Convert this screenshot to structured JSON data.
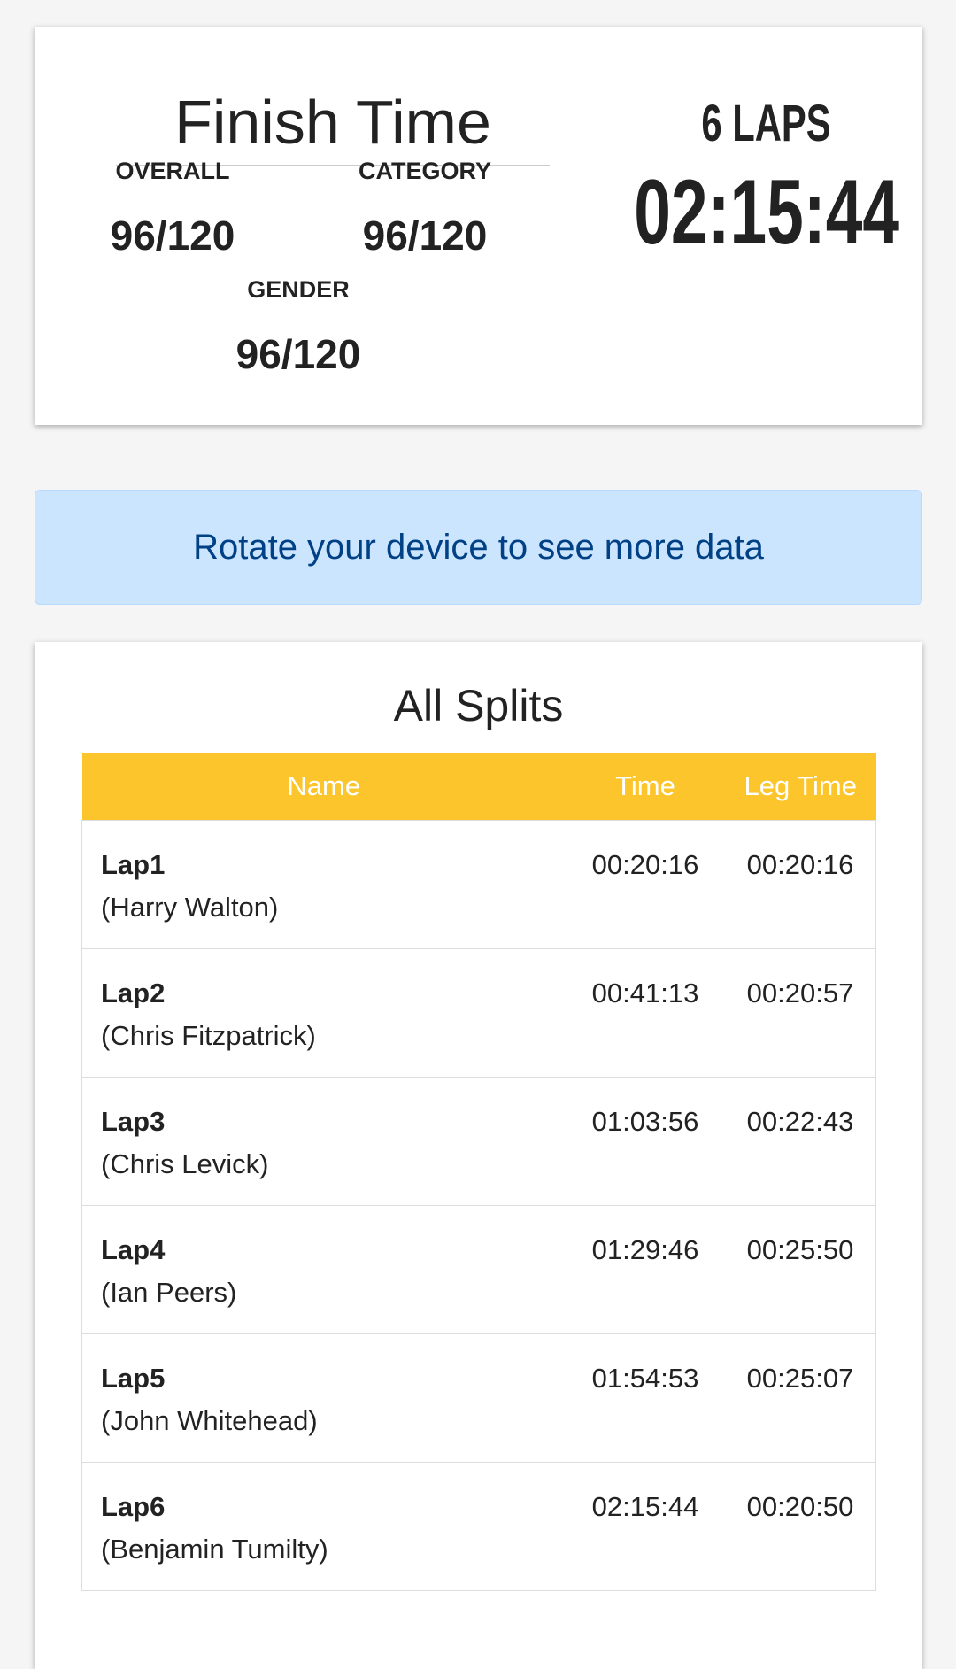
{
  "finish": {
    "title": "Finish Time",
    "overall_label": "OVERALL",
    "overall_value": "96/120",
    "category_label": "CATEGORY",
    "category_value": "96/120",
    "gender_label": "GENDER",
    "gender_value": "96/120",
    "laps": "6 LAPS",
    "time": "02:15:44"
  },
  "alert": {
    "text": "Rotate your device to see more data"
  },
  "splits": {
    "title": "All Splits",
    "columns": [
      "Name",
      "Time",
      "Leg Time"
    ],
    "header_color": "#fbc52b",
    "rows": [
      {
        "lap": "Lap1",
        "runner": "(Harry Walton)",
        "time": "00:20:16",
        "leg": "00:20:16"
      },
      {
        "lap": "Lap2",
        "runner": "(Chris Fitzpatrick)",
        "time": "00:41:13",
        "leg": "00:20:57"
      },
      {
        "lap": "Lap3",
        "runner": "(Chris Levick)",
        "time": "01:03:56",
        "leg": "00:22:43"
      },
      {
        "lap": "Lap4",
        "runner": "(Ian Peers)",
        "time": "01:29:46",
        "leg": "00:25:50"
      },
      {
        "lap": "Lap5",
        "runner": "(John Whitehead)",
        "time": "01:54:53",
        "leg": "00:25:07"
      },
      {
        "lap": "Lap6",
        "runner": "(Benjamin Tumilty)",
        "time": "02:15:44",
        "leg": "00:20:50"
      }
    ]
  }
}
